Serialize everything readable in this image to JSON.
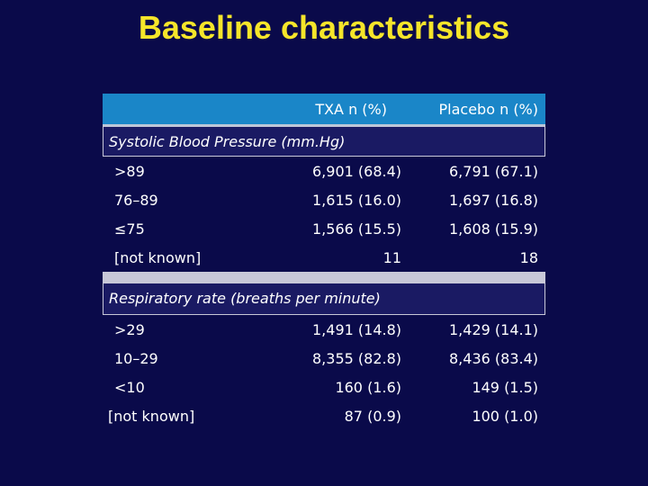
{
  "title": "Baseline characteristics",
  "table": {
    "columns": [
      "",
      "TXA n (%)",
      "Placebo n (%)"
    ],
    "sections": [
      {
        "heading": "Systolic Blood Pressure (mm.Hg)",
        "rows": [
          {
            "label": ">89",
            "txa": "6,901 (68.4)",
            "placebo": "6,791 (67.1)"
          },
          {
            "label": "76–89",
            "txa": "1,615 (16.0)",
            "placebo": "1,697 (16.8)"
          },
          {
            "label": "≤75",
            "txa": "1,566 (15.5)",
            "placebo": "1,608 (15.9)"
          },
          {
            "label": "[not known]",
            "txa": "11",
            "placebo": "18"
          }
        ]
      },
      {
        "heading": "Respiratory rate (breaths per minute)",
        "rows": [
          {
            "label": ">29",
            "txa": "1,491 (14.8)",
            "placebo": "1,429 (14.1)"
          },
          {
            "label": "10–29",
            "txa": "8,355 (82.8)",
            "placebo": "8,436 (83.4)"
          },
          {
            "label": "<10",
            "txa": "160 (1.6)",
            "placebo": "149 (1.5)"
          },
          {
            "label": "[not known]",
            "txa": "87 (0.9)",
            "placebo": "100 (1.0)"
          }
        ]
      }
    ]
  }
}
